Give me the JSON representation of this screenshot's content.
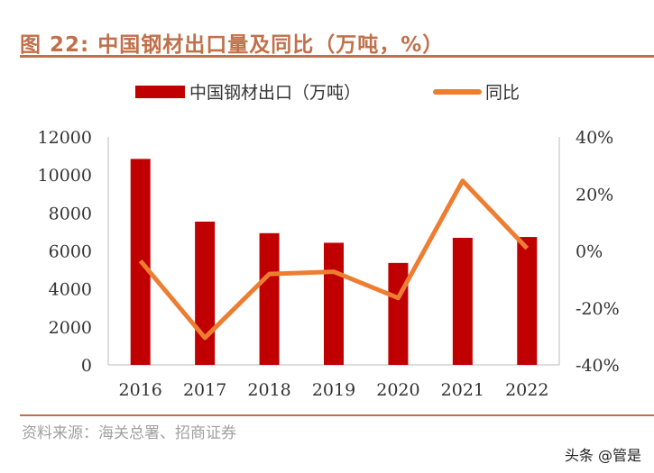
{
  "title": "图 22:  中国钢材出口量及同比（万吨，%）",
  "source": "资料来源：海关总署、招商证券",
  "watermark": "头条 @管是",
  "chart_data": {
    "type": "bar+line",
    "categories": [
      "2016",
      "2017",
      "2018",
      "2019",
      "2020",
      "2021",
      "2022"
    ],
    "series": [
      {
        "name": "中国钢材出口（万吨）",
        "type": "bar",
        "axis": "left",
        "color": "#c00000",
        "values": [
          10843,
          7541,
          6934,
          6429,
          5367,
          6690,
          6732
        ]
      },
      {
        "name": "同比",
        "type": "line",
        "axis": "right",
        "color": "#ed7d31",
        "values": [
          -3.5,
          -30.5,
          -8.1,
          -7.3,
          -16.5,
          24.6,
          0.9
        ]
      }
    ],
    "left_axis": {
      "ylim": [
        0,
        12000
      ],
      "ticks": [
        "0",
        "2000",
        "4000",
        "6000",
        "8000",
        "10000",
        "12000"
      ]
    },
    "right_axis": {
      "ylim": [
        -40,
        40
      ],
      "ticks": [
        "-40%",
        "-20%",
        "0%",
        "20%",
        "40%"
      ]
    },
    "legend": "top",
    "grid": false
  }
}
